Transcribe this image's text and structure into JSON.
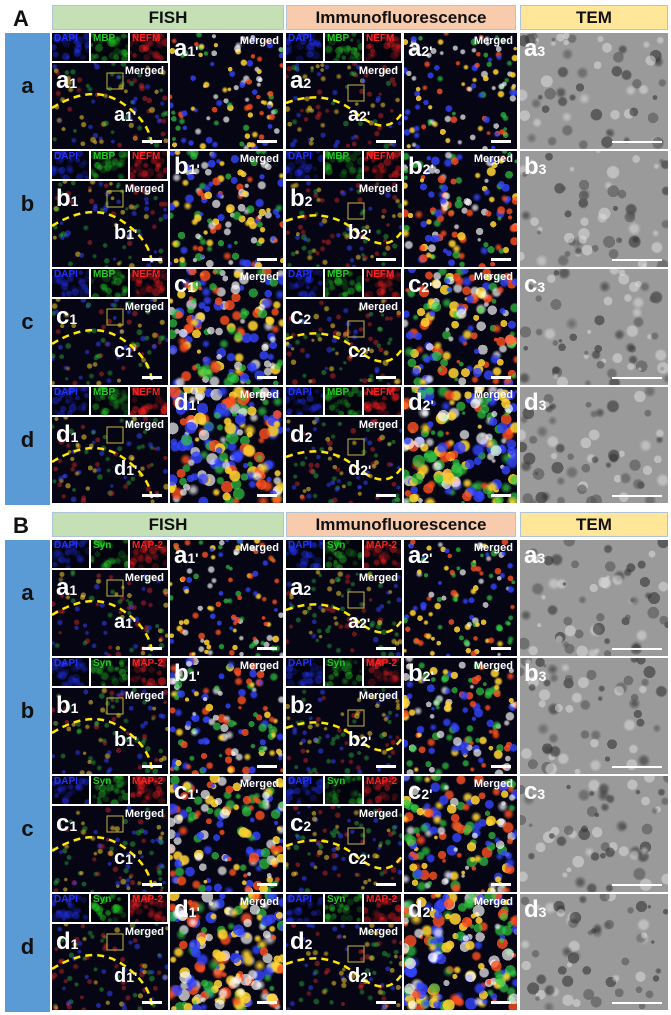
{
  "sections": [
    {
      "label": "A",
      "headers": [
        "FISH",
        "Immunofluorescence",
        "TEM"
      ],
      "thumbs": [
        "DAPI",
        "MBP",
        "NEFM"
      ],
      "rows": [
        "a",
        "b",
        "c",
        "d"
      ],
      "merged": "Merged"
    },
    {
      "label": "B",
      "headers": [
        "FISH",
        "Immunofluorescence",
        "TEM"
      ],
      "thumbs": [
        "DAPI",
        "Syn",
        "MAP-2"
      ],
      "rows": [
        "a",
        "b",
        "c",
        "d"
      ],
      "merged": "Merged"
    }
  ],
  "panel_subscripts": {
    "fish": "1",
    "fish_zoom": "1'",
    "if": "2",
    "if_zoom": "2'",
    "tem": "3"
  },
  "colors": {
    "fish_header": "#c5e0b4",
    "if_header": "#f8cbad",
    "tem_header": "#ffe699",
    "row_bar": "#5b9bd5",
    "dapi": "#2233ff",
    "mbp": "#22cc22",
    "nefm": "#ff2020",
    "dashed_line": "#ffe600"
  }
}
